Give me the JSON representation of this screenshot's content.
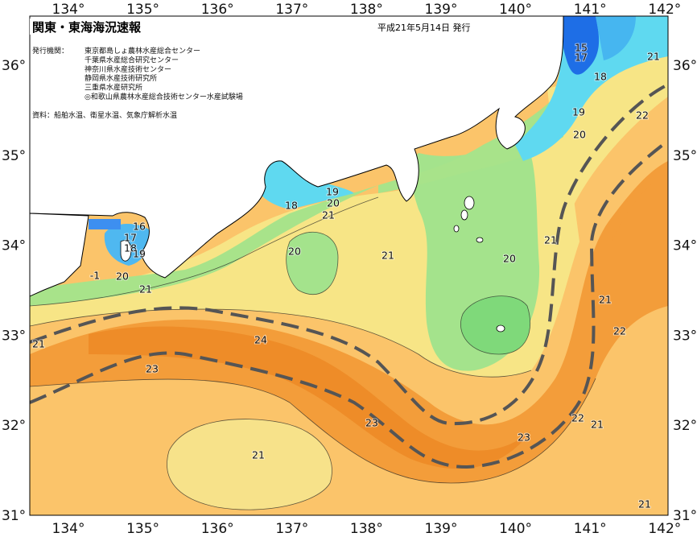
{
  "header": {
    "title": "関東・東海海況速報",
    "date": "平成21年5月14日 発行"
  },
  "issuer": {
    "label": "発行機関：",
    "agencies": [
      "東京都島しょ農林水産総合センター",
      "千葉県水産総合研究センター",
      "神奈川県水産技術センター",
      "静岡県水産技術研究所",
      "三重県水産研究所",
      "◎和歌山県農林水産総合技術センター水産試験場"
    ]
  },
  "sources": "資料：船舶水温、衛星水温、気象庁解析水温",
  "axes": {
    "longitudes": [
      "134°",
      "135°",
      "136°",
      "137°",
      "138°",
      "139°",
      "140°",
      "141°",
      "142°"
    ],
    "latitudes": [
      "36°",
      "35°",
      "34°",
      "33°",
      "32°",
      "31°"
    ]
  },
  "contour_labels": [
    "15",
    "17",
    "21",
    "18",
    "19",
    "20",
    "22",
    "19",
    "20",
    "21",
    "18",
    "16",
    "17",
    "18",
    "19",
    "-1",
    "20",
    "21",
    "20",
    "21",
    "20",
    "21",
    "21",
    "24",
    "23",
    "21",
    "22",
    "23",
    "22",
    "21",
    "23",
    "21",
    "21"
  ]
}
